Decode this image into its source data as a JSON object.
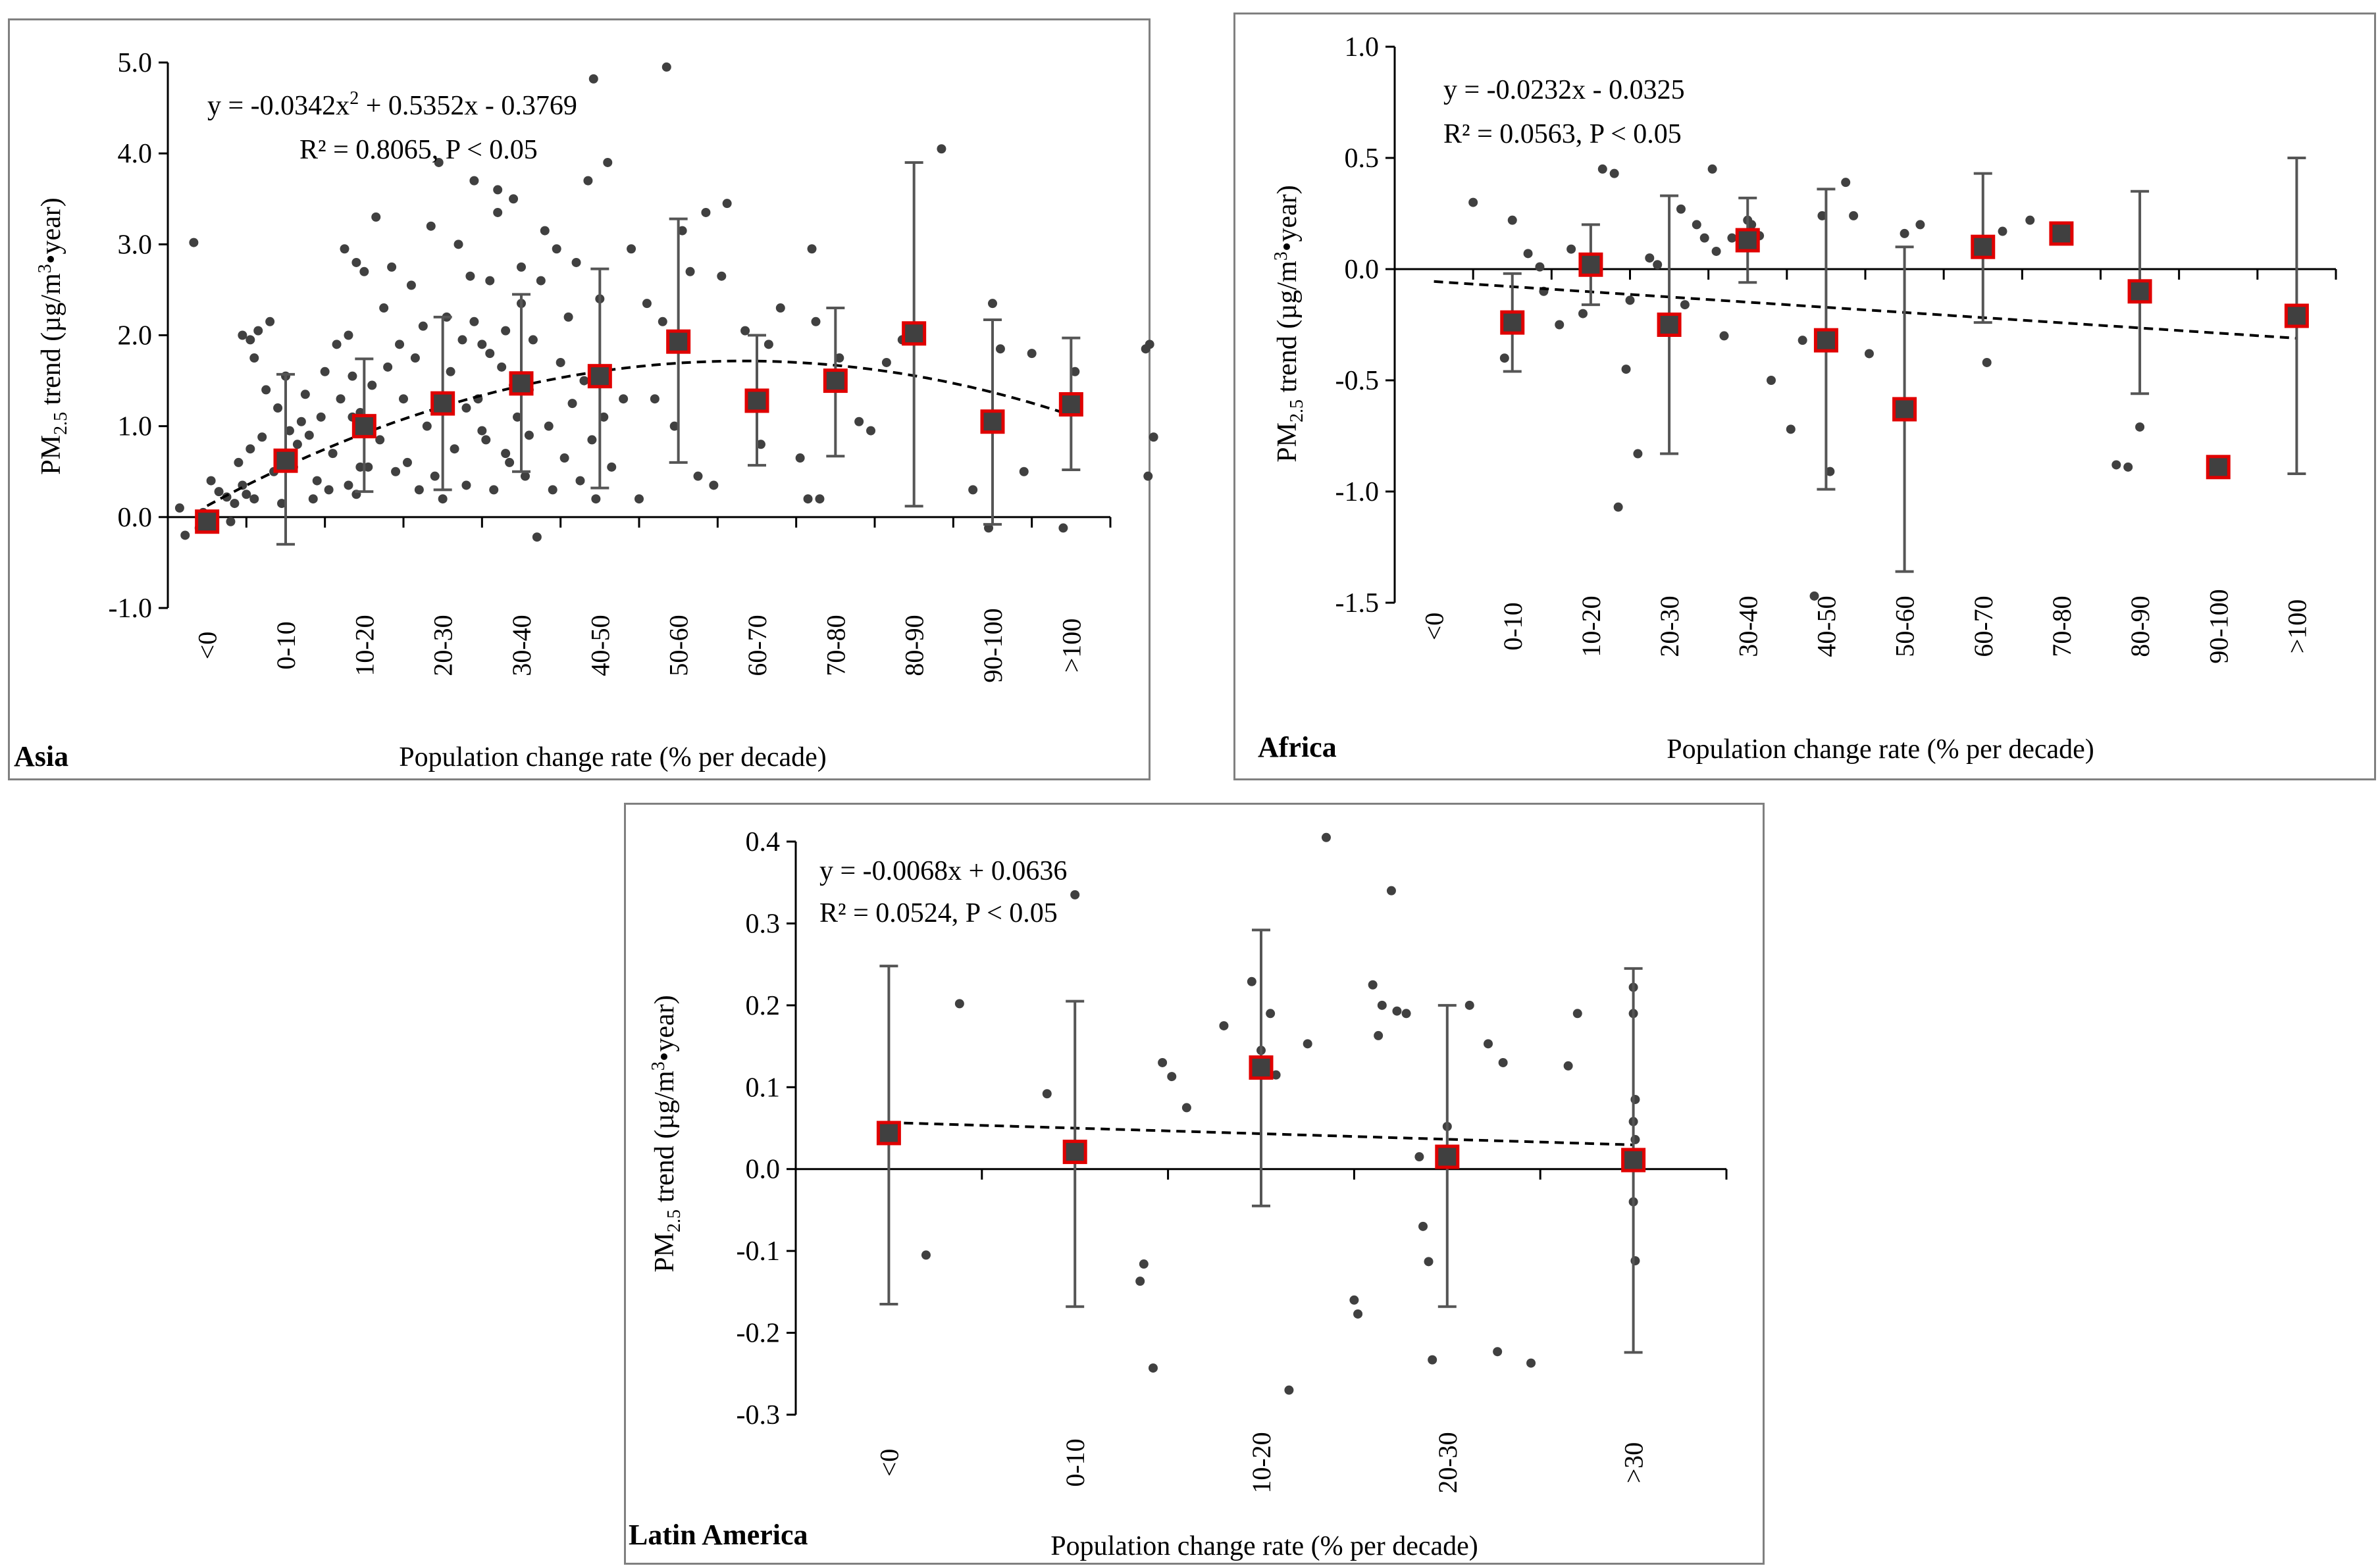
{
  "figure": {
    "x_axis_title": "Population change rate (% per decade)",
    "y_axis_title_prefix": "PM",
    "y_axis_title_sub": "2.5",
    "y_axis_title_mid": " trend (µg/m",
    "y_axis_title_sup": "3",
    "y_axis_title_suffix": "•year)"
  },
  "chart_data": [
    {
      "id": "asia",
      "type": "scatter",
      "panel_label": "Asia",
      "title": "",
      "xlabel": "Population change rate (% per decade)",
      "ylabel": "PM2.5 trend (µg/m3•year)",
      "categories": [
        "<0",
        "0-10",
        "10-20",
        "20-30",
        "30-40",
        "40-50",
        "50-60",
        "60-70",
        "70-80",
        "80-90",
        "90-100",
        ">100"
      ],
      "ylim": [
        -1.0,
        5.0
      ],
      "yticks": [
        -1.0,
        0.0,
        1.0,
        2.0,
        3.0,
        4.0,
        5.0
      ],
      "tick_decimals": 1,
      "grid": false,
      "means": [
        -0.05,
        0.62,
        1.0,
        1.25,
        1.47,
        1.55,
        1.93,
        1.28,
        1.5,
        2.02,
        1.05,
        1.24
      ],
      "error_low": [
        -0.1,
        -0.3,
        0.28,
        0.3,
        0.5,
        0.32,
        0.6,
        0.57,
        0.67,
        0.12,
        -0.08,
        0.52
      ],
      "error_high": [
        0.0,
        1.57,
        1.74,
        2.2,
        2.45,
        2.73,
        3.28,
        2.0,
        2.3,
        3.9,
        2.17,
        1.97
      ],
      "fit": {
        "kind": "poly2",
        "a": -0.0342,
        "b": 0.5352,
        "c": -0.3769,
        "x_from": 1,
        "x_to": 12
      },
      "equation_line1": "y = -0.0342x",
      "equation_line1_sup": "2",
      "equation_line1_rest": " + 0.5352x - 0.3769",
      "equation_line2": "R² = 0.8065, P < 0.05",
      "points": [
        [
          0.65,
          0.1
        ],
        [
          0.72,
          -0.2
        ],
        [
          0.83,
          3.02
        ],
        [
          0.9,
          -0.12
        ],
        [
          0.95,
          0.05
        ],
        [
          1.05,
          0.4
        ],
        [
          1.15,
          0.28
        ],
        [
          1.25,
          0.22
        ],
        [
          1.3,
          -0.05
        ],
        [
          1.35,
          0.15
        ],
        [
          1.4,
          0.6
        ],
        [
          1.45,
          0.35
        ],
        [
          1.5,
          0.25
        ],
        [
          1.55,
          0.75
        ],
        [
          1.6,
          0.2
        ],
        [
          1.45,
          2.0
        ],
        [
          1.55,
          1.95
        ],
        [
          1.6,
          1.75
        ],
        [
          1.65,
          2.05
        ],
        [
          1.7,
          0.88
        ],
        [
          1.75,
          1.4
        ],
        [
          1.8,
          2.15
        ],
        [
          1.85,
          0.5
        ],
        [
          1.9,
          1.2
        ],
        [
          1.95,
          0.15
        ],
        [
          2.0,
          1.55
        ],
        [
          2.05,
          0.95
        ],
        [
          2.1,
          0.55
        ],
        [
          2.15,
          0.8
        ],
        [
          2.2,
          1.05
        ],
        [
          2.25,
          1.35
        ],
        [
          2.3,
          0.9
        ],
        [
          2.35,
          0.2
        ],
        [
          2.4,
          0.4
        ],
        [
          2.45,
          1.1
        ],
        [
          2.5,
          1.6
        ],
        [
          2.55,
          0.3
        ],
        [
          2.6,
          0.7
        ],
        [
          2.65,
          1.9
        ],
        [
          2.7,
          1.3
        ],
        [
          2.75,
          2.95
        ],
        [
          2.8,
          0.35
        ],
        [
          2.85,
          1.1
        ],
        [
          2.9,
          2.8
        ],
        [
          2.95,
          0.55
        ],
        [
          2.8,
          2.0
        ],
        [
          2.85,
          1.55
        ],
        [
          2.9,
          0.25
        ],
        [
          2.95,
          1.15
        ],
        [
          3.0,
          2.7
        ],
        [
          3.05,
          0.55
        ],
        [
          3.1,
          1.45
        ],
        [
          3.15,
          3.3
        ],
        [
          3.2,
          0.85
        ],
        [
          3.25,
          2.3
        ],
        [
          3.3,
          1.65
        ],
        [
          3.35,
          2.75
        ],
        [
          3.4,
          0.5
        ],
        [
          3.45,
          1.9
        ],
        [
          3.5,
          1.3
        ],
        [
          3.55,
          0.6
        ],
        [
          3.6,
          2.55
        ],
        [
          3.65,
          1.75
        ],
        [
          3.7,
          0.3
        ],
        [
          3.75,
          2.1
        ],
        [
          3.8,
          1.0
        ],
        [
          3.85,
          3.2
        ],
        [
          3.9,
          0.45
        ],
        [
          3.95,
          3.9
        ],
        [
          4.0,
          0.2
        ],
        [
          4.05,
          2.2
        ],
        [
          4.1,
          1.6
        ],
        [
          4.15,
          0.75
        ],
        [
          4.2,
          3.0
        ],
        [
          4.25,
          1.95
        ],
        [
          4.3,
          0.35
        ],
        [
          4.35,
          2.65
        ],
        [
          4.4,
          3.7
        ],
        [
          4.45,
          1.3
        ],
        [
          4.5,
          1.9
        ],
        [
          4.55,
          0.85
        ],
        [
          4.6,
          2.6
        ],
        [
          4.65,
          0.3
        ],
        [
          4.7,
          3.6
        ],
        [
          4.75,
          1.65
        ],
        [
          4.8,
          2.05
        ],
        [
          4.85,
          0.6
        ],
        [
          4.9,
          3.5
        ],
        [
          4.95,
          1.1
        ],
        [
          5.0,
          2.75
        ],
        [
          5.05,
          0.45
        ],
        [
          5.1,
          1.4
        ],
        [
          5.15,
          1.95
        ],
        [
          4.3,
          1.2
        ],
        [
          4.4,
          2.15
        ],
        [
          4.5,
          0.95
        ],
        [
          4.6,
          1.8
        ],
        [
          4.7,
          3.35
        ],
        [
          4.8,
          0.7
        ],
        [
          4.9,
          1.45
        ],
        [
          5.0,
          2.35
        ],
        [
          5.1,
          0.9
        ],
        [
          5.2,
          -0.22
        ],
        [
          5.25,
          2.6
        ],
        [
          5.3,
          3.15
        ],
        [
          5.35,
          1.0
        ],
        [
          5.4,
          0.3
        ],
        [
          5.45,
          2.95
        ],
        [
          5.5,
          1.7
        ],
        [
          5.55,
          0.65
        ],
        [
          5.6,
          2.2
        ],
        [
          5.65,
          1.25
        ],
        [
          5.7,
          2.8
        ],
        [
          5.75,
          0.4
        ],
        [
          5.8,
          1.5
        ],
        [
          5.85,
          3.7
        ],
        [
          5.9,
          0.85
        ],
        [
          5.95,
          0.2
        ],
        [
          6.0,
          2.4
        ],
        [
          6.05,
          1.1
        ],
        [
          6.1,
          3.9
        ],
        [
          5.92,
          4.82
        ],
        [
          6.4,
          2.95
        ],
        [
          6.15,
          0.55
        ],
        [
          6.3,
          1.3
        ],
        [
          6.5,
          0.2
        ],
        [
          6.6,
          2.35
        ],
        [
          6.7,
          1.3
        ],
        [
          6.8,
          2.15
        ],
        [
          6.85,
          4.95
        ],
        [
          6.95,
          1.0
        ],
        [
          7.05,
          3.15
        ],
        [
          7.15,
          2.7
        ],
        [
          7.25,
          0.45
        ],
        [
          7.35,
          3.35
        ],
        [
          7.45,
          0.35
        ],
        [
          7.55,
          2.65
        ],
        [
          7.62,
          3.45
        ],
        [
          7.85,
          2.05
        ],
        [
          7.95,
          1.35
        ],
        [
          8.05,
          0.8
        ],
        [
          8.15,
          1.9
        ],
        [
          8.3,
          2.3
        ],
        [
          8.55,
          0.65
        ],
        [
          8.65,
          0.2
        ],
        [
          8.7,
          2.95
        ],
        [
          8.75,
          2.15
        ],
        [
          8.8,
          0.2
        ],
        [
          9.05,
          1.75
        ],
        [
          9.3,
          1.05
        ],
        [
          9.45,
          0.95
        ],
        [
          9.65,
          1.7
        ],
        [
          9.85,
          1.95
        ],
        [
          10.35,
          4.05
        ],
        [
          10.75,
          0.3
        ],
        [
          10.95,
          -0.12
        ],
        [
          11.0,
          2.35
        ],
        [
          11.1,
          1.85
        ],
        [
          11.4,
          0.5
        ],
        [
          11.5,
          1.8
        ],
        [
          11.9,
          -0.12
        ],
        [
          12.05,
          1.6
        ],
        [
          12.95,
          1.85
        ],
        [
          13.0,
          1.9
        ],
        [
          12.98,
          0.45
        ],
        [
          13.05,
          0.88
        ]
      ]
    },
    {
      "id": "africa",
      "type": "scatter",
      "panel_label": "Africa",
      "title": "",
      "xlabel": "Population change rate (% per decade)",
      "ylabel": "PM2.5 trend (µg/m3•year)",
      "categories": [
        "<0",
        "0-10",
        "10-20",
        "20-30",
        "30-40",
        "40-50",
        "50-60",
        "60-70",
        "70-80",
        "80-90",
        "90-100",
        ">100"
      ],
      "ylim": [
        -1.5,
        1.0
      ],
      "yticks": [
        -1.5,
        -1.0,
        -0.5,
        0.0,
        0.5,
        1.0
      ],
      "tick_decimals": 1,
      "grid": false,
      "means": [
        null,
        -0.24,
        0.02,
        -0.25,
        0.13,
        -0.32,
        -0.63,
        0.1,
        0.16,
        -0.1,
        -0.89,
        -0.21
      ],
      "error_low": [
        null,
        -0.46,
        -0.16,
        -0.83,
        -0.06,
        -0.99,
        -1.36,
        -0.24,
        null,
        -0.56,
        null,
        -0.92
      ],
      "error_high": [
        null,
        -0.02,
        0.2,
        0.33,
        0.32,
        0.36,
        0.1,
        0.43,
        null,
        0.35,
        null,
        0.5
      ],
      "fit": {
        "kind": "linear",
        "a": -0.0232,
        "b": -0.0325,
        "x_from": 1,
        "x_to": 12
      },
      "equation_line1": "y = -0.0232x - 0.0325",
      "equation_line2": "R² = 0.0563, P < 0.05",
      "points": [
        [
          1.5,
          0.3
        ],
        [
          1.9,
          -0.4
        ],
        [
          2.0,
          0.22
        ],
        [
          2.2,
          0.07
        ],
        [
          2.35,
          0.01
        ],
        [
          2.4,
          -0.1
        ],
        [
          2.6,
          -0.25
        ],
        [
          2.75,
          0.09
        ],
        [
          2.9,
          -0.2
        ],
        [
          3.0,
          0.05
        ],
        [
          3.15,
          0.45
        ],
        [
          3.3,
          0.43
        ],
        [
          3.35,
          -1.07
        ],
        [
          3.45,
          -0.45
        ],
        [
          3.5,
          -0.14
        ],
        [
          3.6,
          -0.83
        ],
        [
          3.75,
          0.05
        ],
        [
          3.85,
          0.02
        ],
        [
          4.15,
          0.27
        ],
        [
          4.2,
          -0.16
        ],
        [
          4.35,
          0.2
        ],
        [
          4.45,
          0.14
        ],
        [
          4.55,
          0.45
        ],
        [
          4.6,
          0.08
        ],
        [
          4.7,
          -0.3
        ],
        [
          4.8,
          0.14
        ],
        [
          5.0,
          0.22
        ],
        [
          5.05,
          0.2
        ],
        [
          5.15,
          0.15
        ],
        [
          5.3,
          -0.5
        ],
        [
          5.55,
          -0.72
        ],
        [
          5.7,
          -0.32
        ],
        [
          5.85,
          -1.47
        ],
        [
          5.95,
          0.24
        ],
        [
          6.05,
          -0.91
        ],
        [
          6.25,
          0.39
        ],
        [
          6.35,
          0.24
        ],
        [
          6.55,
          -0.38
        ],
        [
          7.0,
          0.16
        ],
        [
          7.2,
          0.2
        ],
        [
          8.05,
          -0.42
        ],
        [
          8.25,
          0.17
        ],
        [
          8.6,
          0.22
        ],
        [
          9.7,
          -0.88
        ],
        [
          9.85,
          -0.89
        ],
        [
          10.0,
          -0.71
        ]
      ]
    },
    {
      "id": "latin-america",
      "type": "scatter",
      "panel_label": "Latin America",
      "title": "",
      "xlabel": "Population change rate (% per decade)",
      "ylabel": "PM2.5 trend (µg/m3•year)",
      "categories": [
        "<0",
        "0-10",
        "10-20",
        "20-30",
        ">30"
      ],
      "ylim": [
        -0.3,
        0.4
      ],
      "yticks": [
        -0.3,
        -0.2,
        -0.1,
        0.0,
        0.1,
        0.2,
        0.3,
        0.4
      ],
      "tick_decimals": 1,
      "grid": false,
      "means": [
        0.044,
        0.021,
        0.124,
        0.015,
        0.011
      ],
      "error_low": [
        -0.165,
        -0.168,
        -0.045,
        -0.168,
        -0.224
      ],
      "error_high": [
        0.248,
        0.205,
        0.292,
        0.2,
        0.245
      ],
      "fit": {
        "kind": "linear",
        "a": -0.0068,
        "b": 0.0636,
        "x_from": 1,
        "x_to": 5
      },
      "equation_line1": "y = -0.0068x + 0.0636",
      "equation_line2": "R² = 0.0524, P < 0.05",
      "points": [
        [
          1.2,
          -0.105
        ],
        [
          1.38,
          0.202
        ],
        [
          1.85,
          0.092
        ],
        [
          2.0,
          0.335
        ],
        [
          2.35,
          -0.137
        ],
        [
          2.37,
          -0.116
        ],
        [
          2.42,
          -0.243
        ],
        [
          2.47,
          0.13
        ],
        [
          2.52,
          0.113
        ],
        [
          2.6,
          0.075
        ],
        [
          2.8,
          0.175
        ],
        [
          2.95,
          0.229
        ],
        [
          3.0,
          0.145
        ],
        [
          3.05,
          0.19
        ],
        [
          3.08,
          0.115
        ],
        [
          3.15,
          -0.27
        ],
        [
          3.25,
          0.153
        ],
        [
          3.35,
          0.405
        ],
        [
          3.5,
          -0.16
        ],
        [
          3.52,
          -0.177
        ],
        [
          3.6,
          0.225
        ],
        [
          3.63,
          0.163
        ],
        [
          3.65,
          0.2
        ],
        [
          3.7,
          0.34
        ],
        [
          3.73,
          0.193
        ],
        [
          3.78,
          0.19
        ],
        [
          3.85,
          0.015
        ],
        [
          3.87,
          -0.07
        ],
        [
          3.9,
          -0.113
        ],
        [
          3.92,
          -0.233
        ],
        [
          4.0,
          0.052
        ],
        [
          4.12,
          0.2
        ],
        [
          4.22,
          0.153
        ],
        [
          4.27,
          -0.223
        ],
        [
          4.3,
          0.13
        ],
        [
          4.45,
          -0.237
        ],
        [
          4.65,
          0.126
        ],
        [
          4.7,
          0.19
        ],
        [
          5.0,
          0.222
        ],
        [
          5.0,
          0.19
        ],
        [
          5.01,
          0.085
        ],
        [
          5.0,
          0.058
        ],
        [
          5.01,
          0.036
        ],
        [
          5.0,
          -0.04
        ],
        [
          5.01,
          -0.112
        ]
      ]
    }
  ]
}
